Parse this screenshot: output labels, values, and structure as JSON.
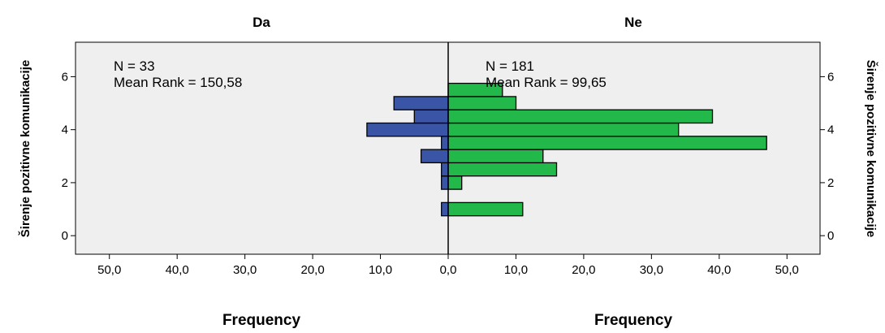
{
  "chart_data": {
    "type": "bar",
    "orientation": "horizontal",
    "layout": "back-to-back population pyramid",
    "y_axis_label": "Širenje pozitivne komunikacije",
    "y_ticks": [
      0,
      2,
      4,
      6
    ],
    "y_range": [
      -0.7,
      7.3
    ],
    "x_label": "Frequency",
    "x_ticks": [
      "50,0",
      "40,0",
      "30,0",
      "20,0",
      "10,0",
      "0,0",
      "10,0",
      "20,0",
      "30,0",
      "40,0",
      "50,0"
    ],
    "x_range_each_side": [
      0,
      55
    ],
    "bin_centers": [
      1,
      1.5,
      2,
      2.5,
      3,
      3.5,
      4,
      4.5,
      5,
      5.5
    ],
    "series": [
      {
        "name": "Da",
        "side": "left",
        "color": "#3a55a6",
        "n_label": "N = 33",
        "mean_rank_label": "Mean Rank = 150,58",
        "values": [
          1,
          0,
          1,
          1,
          4,
          1,
          12,
          5,
          8,
          0
        ]
      },
      {
        "name": "Ne",
        "side": "right",
        "color": "#22b84a",
        "n_label": "N = 181",
        "mean_rank_label": "Mean Rank = 99,65",
        "values": [
          11,
          0,
          2,
          16,
          14,
          47,
          34,
          39,
          10,
          8
        ]
      }
    ]
  }
}
